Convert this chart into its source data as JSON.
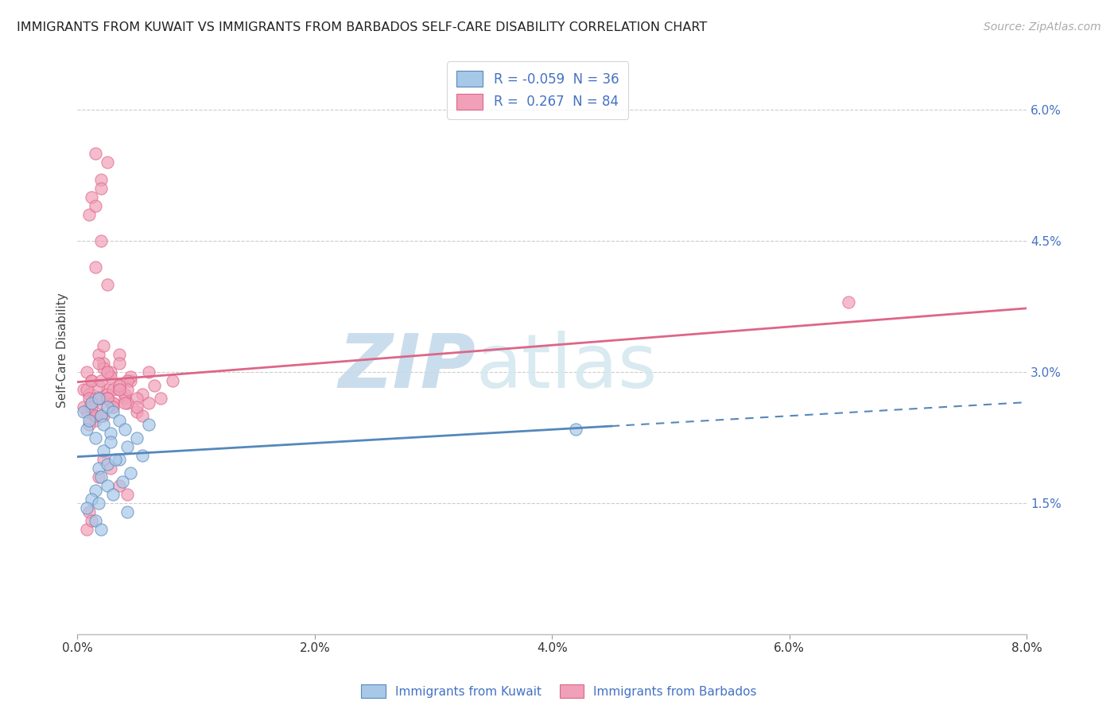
{
  "title": "IMMIGRANTS FROM KUWAIT VS IMMIGRANTS FROM BARBADOS SELF-CARE DISABILITY CORRELATION CHART",
  "source": "Source: ZipAtlas.com",
  "xlabel_vals": [
    0.0,
    2.0,
    4.0,
    6.0,
    8.0
  ],
  "ylabel_vals": [
    1.5,
    3.0,
    4.5,
    6.0
  ],
  "legend_r_kuwait": "-0.059",
  "legend_n_kuwait": "36",
  "legend_r_barbados": "0.267",
  "legend_n_barbados": "84",
  "kuwait_color": "#a8c8e8",
  "barbados_color": "#f0a0b8",
  "kuwait_line_color": "#5588bb",
  "barbados_line_color": "#dd6688",
  "background_color": "#ffffff",
  "watermark_zip": "ZIP",
  "watermark_atlas": "atlas",
  "kuwait_x": [
    0.05,
    0.08,
    0.1,
    0.12,
    0.15,
    0.18,
    0.2,
    0.22,
    0.25,
    0.28,
    0.3,
    0.35,
    0.4,
    0.18,
    0.22,
    0.28,
    0.35,
    0.42,
    0.5,
    0.6,
    0.15,
    0.2,
    0.25,
    0.3,
    0.38,
    0.45,
    0.55,
    0.12,
    0.08,
    0.18,
    0.25,
    0.32,
    0.42,
    4.2,
    0.15,
    0.2
  ],
  "kuwait_y": [
    2.55,
    2.35,
    2.45,
    2.65,
    2.25,
    2.7,
    2.5,
    2.4,
    2.6,
    2.3,
    2.55,
    2.45,
    2.35,
    1.9,
    2.1,
    2.2,
    2.0,
    2.15,
    2.25,
    2.4,
    1.65,
    1.8,
    1.7,
    1.6,
    1.75,
    1.85,
    2.05,
    1.55,
    1.45,
    1.5,
    1.95,
    2.0,
    1.4,
    2.35,
    1.3,
    1.2
  ],
  "barbados_x": [
    0.05,
    0.08,
    0.1,
    0.12,
    0.15,
    0.18,
    0.2,
    0.22,
    0.25,
    0.28,
    0.08,
    0.1,
    0.12,
    0.15,
    0.18,
    0.2,
    0.22,
    0.25,
    0.28,
    0.3,
    0.05,
    0.08,
    0.1,
    0.12,
    0.15,
    0.18,
    0.2,
    0.22,
    0.25,
    0.3,
    0.1,
    0.12,
    0.15,
    0.18,
    0.22,
    0.25,
    0.3,
    0.35,
    0.4,
    0.45,
    0.3,
    0.35,
    0.4,
    0.45,
    0.5,
    0.55,
    0.6,
    0.65,
    0.7,
    0.8,
    0.35,
    0.42,
    0.5,
    0.55,
    0.35,
    0.42,
    0.5,
    0.6,
    0.35,
    0.42,
    0.2,
    0.25,
    0.3,
    0.35,
    0.4,
    0.18,
    0.22,
    0.28,
    0.35,
    0.42,
    0.15,
    0.2,
    0.25,
    0.1,
    0.12,
    0.15,
    0.2,
    0.08,
    0.1,
    0.12,
    6.5,
    0.15,
    0.2,
    0.25
  ],
  "barbados_y": [
    2.8,
    3.0,
    2.6,
    2.9,
    2.5,
    3.2,
    2.7,
    3.1,
    2.8,
    3.0,
    2.55,
    2.75,
    2.65,
    2.45,
    2.85,
    2.65,
    3.05,
    2.75,
    2.95,
    2.65,
    2.6,
    2.8,
    2.7,
    2.9,
    2.7,
    3.1,
    2.9,
    3.3,
    3.0,
    2.8,
    2.4,
    2.6,
    2.5,
    2.7,
    2.5,
    2.7,
    2.6,
    2.8,
    2.7,
    2.9,
    2.65,
    2.85,
    2.75,
    2.95,
    2.55,
    2.75,
    2.65,
    2.85,
    2.7,
    2.9,
    3.2,
    2.9,
    2.7,
    2.5,
    3.1,
    2.8,
    2.6,
    3.0,
    2.85,
    2.65,
    2.5,
    2.7,
    2.6,
    2.8,
    2.65,
    1.8,
    2.0,
    1.9,
    1.7,
    1.6,
    5.5,
    5.2,
    5.4,
    4.8,
    5.0,
    4.9,
    5.1,
    1.2,
    1.4,
    1.3,
    3.8,
    4.2,
    4.5,
    4.0
  ]
}
